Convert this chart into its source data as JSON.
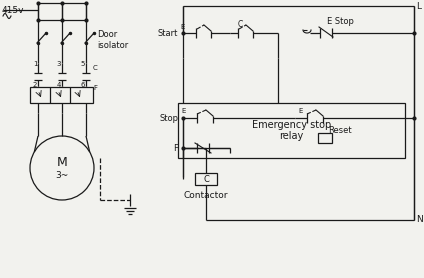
{
  "bg_color": "#f2f2ee",
  "line_color": "#1a1a1a",
  "labels": {
    "voltage": "415v",
    "door_isolator": "Door\nisolator",
    "start": "Start",
    "stop": "Stop",
    "estop": "E Stop",
    "reset": "Reset",
    "emergency": "Emergency stop\nrelay",
    "contactor": "Contactor",
    "L": "L",
    "N": "N"
  }
}
